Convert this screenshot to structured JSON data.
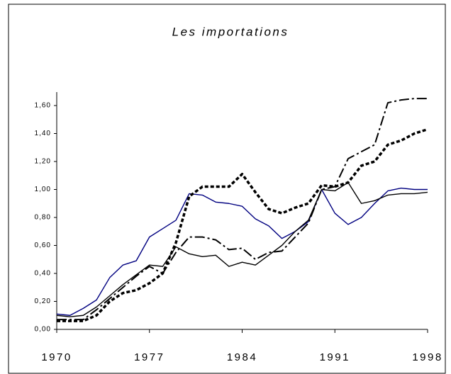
{
  "chart_data": {
    "type": "line",
    "title": "Les importations",
    "x": [
      1970,
      1971,
      1972,
      1973,
      1974,
      1975,
      1976,
      1977,
      1978,
      1979,
      1980,
      1981,
      1982,
      1983,
      1984,
      1985,
      1986,
      1987,
      1988,
      1989,
      1990,
      1991,
      1992,
      1993,
      1994,
      1995,
      1996,
      1997,
      1998
    ],
    "series": [
      {
        "color": "#000080",
        "style": "solid",
        "values": [
          0.11,
          0.1,
          0.15,
          0.21,
          0.37,
          0.46,
          0.49,
          0.66,
          0.72,
          0.78,
          0.97,
          0.96,
          0.91,
          0.9,
          0.88,
          0.79,
          0.74,
          0.65,
          0.7,
          0.77,
          1.0,
          0.83,
          0.75,
          0.8,
          0.9,
          0.99,
          1.01,
          1.0,
          1.0
        ]
      },
      {
        "color": "#000000",
        "style": "solid",
        "values": [
          0.1,
          0.09,
          0.1,
          0.16,
          0.24,
          0.32,
          0.39,
          0.46,
          0.45,
          0.59,
          0.54,
          0.52,
          0.53,
          0.45,
          0.48,
          0.46,
          0.53,
          0.6,
          0.7,
          0.78,
          1.0,
          0.99,
          1.05,
          0.9,
          0.92,
          0.96,
          0.97,
          0.97,
          0.98
        ]
      },
      {
        "color": "#000000",
        "style": "dashdot",
        "values": [
          0.07,
          0.07,
          0.07,
          0.14,
          0.22,
          0.3,
          0.38,
          0.45,
          0.4,
          0.55,
          0.66,
          0.66,
          0.64,
          0.57,
          0.58,
          0.5,
          0.55,
          0.56,
          0.66,
          0.76,
          1.0,
          1.02,
          1.22,
          1.27,
          1.32,
          1.62,
          1.64,
          1.65,
          1.65
        ]
      },
      {
        "color": "#000000",
        "style": "dotted",
        "values": [
          0.06,
          0.06,
          0.06,
          0.1,
          0.2,
          0.26,
          0.28,
          0.33,
          0.4,
          0.62,
          0.95,
          1.02,
          1.02,
          1.02,
          1.11,
          0.98,
          0.86,
          0.83,
          0.87,
          0.9,
          1.03,
          1.02,
          1.05,
          1.17,
          1.2,
          1.32,
          1.35,
          1.4,
          1.43
        ]
      }
    ],
    "xlim": [
      1970,
      1998
    ],
    "xticks": [
      1970,
      1977,
      1984,
      1991,
      1998
    ],
    "ylim": [
      0,
      1.6
    ],
    "yticks": [
      {
        "value": 0,
        "label": "0,00"
      },
      {
        "value": 0.2,
        "label": "0,20"
      },
      {
        "value": 0.4,
        "label": "0,40"
      },
      {
        "value": 0.6,
        "label": "0,60"
      },
      {
        "value": 0.8,
        "label": "0,80"
      },
      {
        "value": 1.0,
        "label": "1,00"
      },
      {
        "value": 1.2,
        "label": "1,20"
      },
      {
        "value": 1.4,
        "label": "1,40"
      },
      {
        "value": 1.6,
        "label": "1,60"
      }
    ],
    "grid": false
  }
}
